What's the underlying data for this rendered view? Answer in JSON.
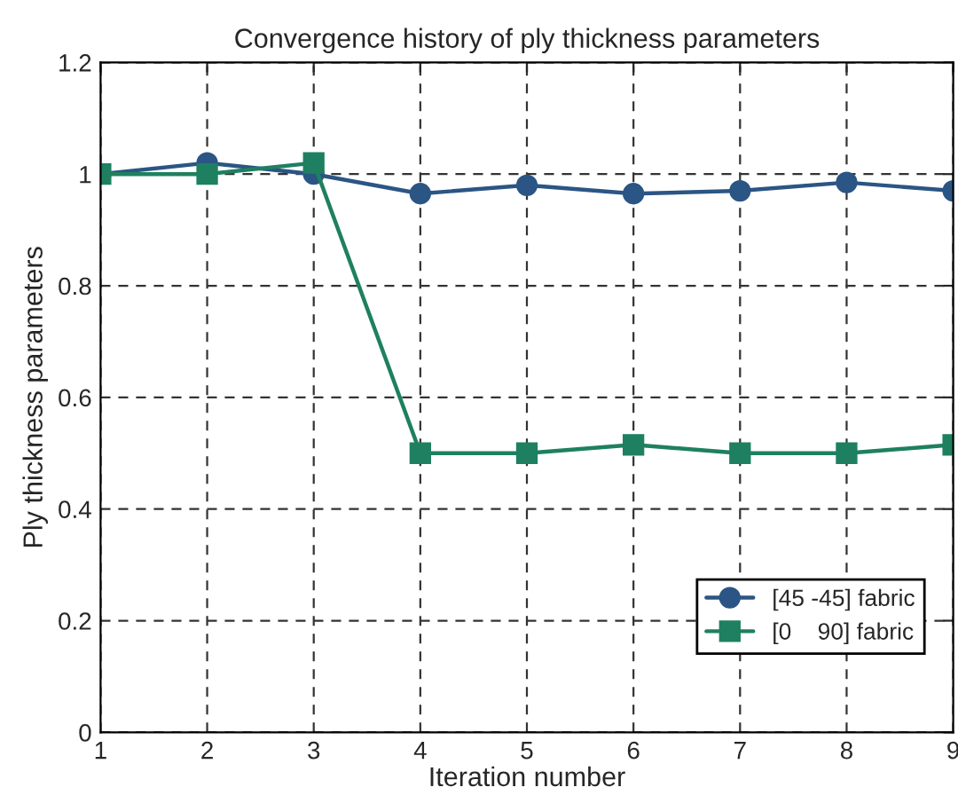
{
  "chart_data": {
    "type": "line",
    "title": "Convergence history of ply thickness parameters",
    "xlabel": "Iteration number",
    "ylabel": "Ply thickness parameters",
    "x": [
      1,
      2,
      3,
      4,
      5,
      6,
      7,
      8,
      9
    ],
    "series": [
      {
        "name": "[45 -45] fabric",
        "color": "#2b5584",
        "marker": "circle",
        "values": [
          1.0,
          1.02,
          1.0,
          0.965,
          0.98,
          0.965,
          0.97,
          0.985,
          0.97
        ]
      },
      {
        "name": "[0    90] fabric",
        "color": "#1e8060",
        "marker": "square",
        "values": [
          1.0,
          1.0,
          1.02,
          0.5,
          0.5,
          0.515,
          0.5,
          0.5,
          0.515
        ]
      }
    ],
    "xlim": [
      1,
      9
    ],
    "xticks": [
      1,
      2,
      3,
      4,
      5,
      6,
      7,
      8,
      9
    ],
    "ylim": [
      0,
      1.2
    ],
    "yticks": [
      0,
      0.2,
      0.4,
      0.6,
      0.8,
      1,
      1.2
    ],
    "grid": true,
    "legend": "bottom right",
    "line_style": "solid"
  }
}
